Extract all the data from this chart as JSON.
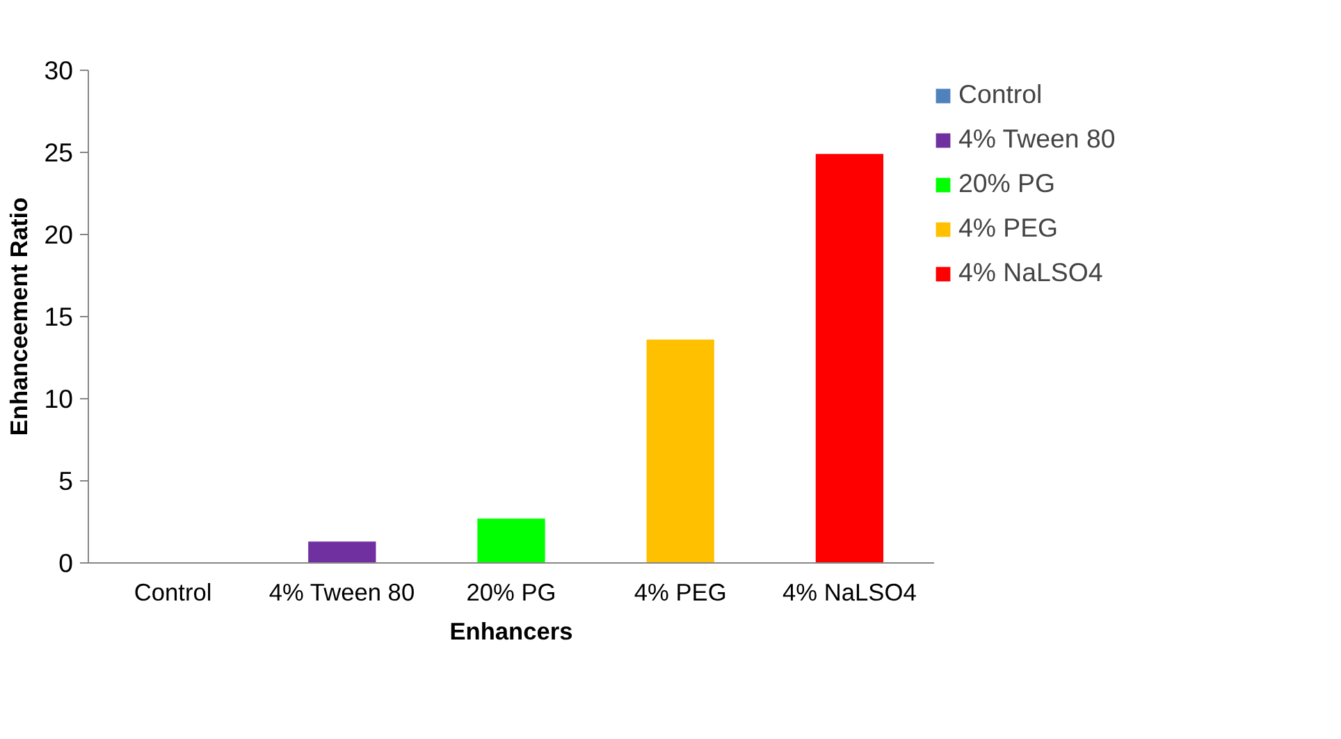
{
  "chart_data": {
    "type": "bar",
    "xlabel": "Enhancers",
    "ylabel": "Enhanceement Ratio",
    "categories": [
      "Control",
      "4% Tween 80",
      "20% PG",
      "4% PEG",
      "4% NaLSO4"
    ],
    "series": [
      {
        "name": "Control",
        "color": "#4f81bd",
        "values": [
          0,
          null,
          null,
          null,
          null
        ]
      },
      {
        "name": "4% Tween 80",
        "color": "#7030a0",
        "values": [
          null,
          1.3,
          null,
          null,
          null
        ]
      },
      {
        "name": "20% PG",
        "color": "#00ff00",
        "values": [
          null,
          null,
          2.7,
          null,
          null
        ]
      },
      {
        "name": "4% PEG",
        "color": "#ffc000",
        "values": [
          null,
          null,
          null,
          13.6,
          null
        ]
      },
      {
        "name": "4% NaLSO4",
        "color": "#ff0000",
        "values": [
          null,
          null,
          null,
          null,
          24.9
        ]
      }
    ],
    "ylim": [
      0,
      30
    ],
    "yticks": [
      0,
      5,
      10,
      15,
      20,
      25,
      30
    ],
    "grid": false,
    "legend": "right"
  }
}
